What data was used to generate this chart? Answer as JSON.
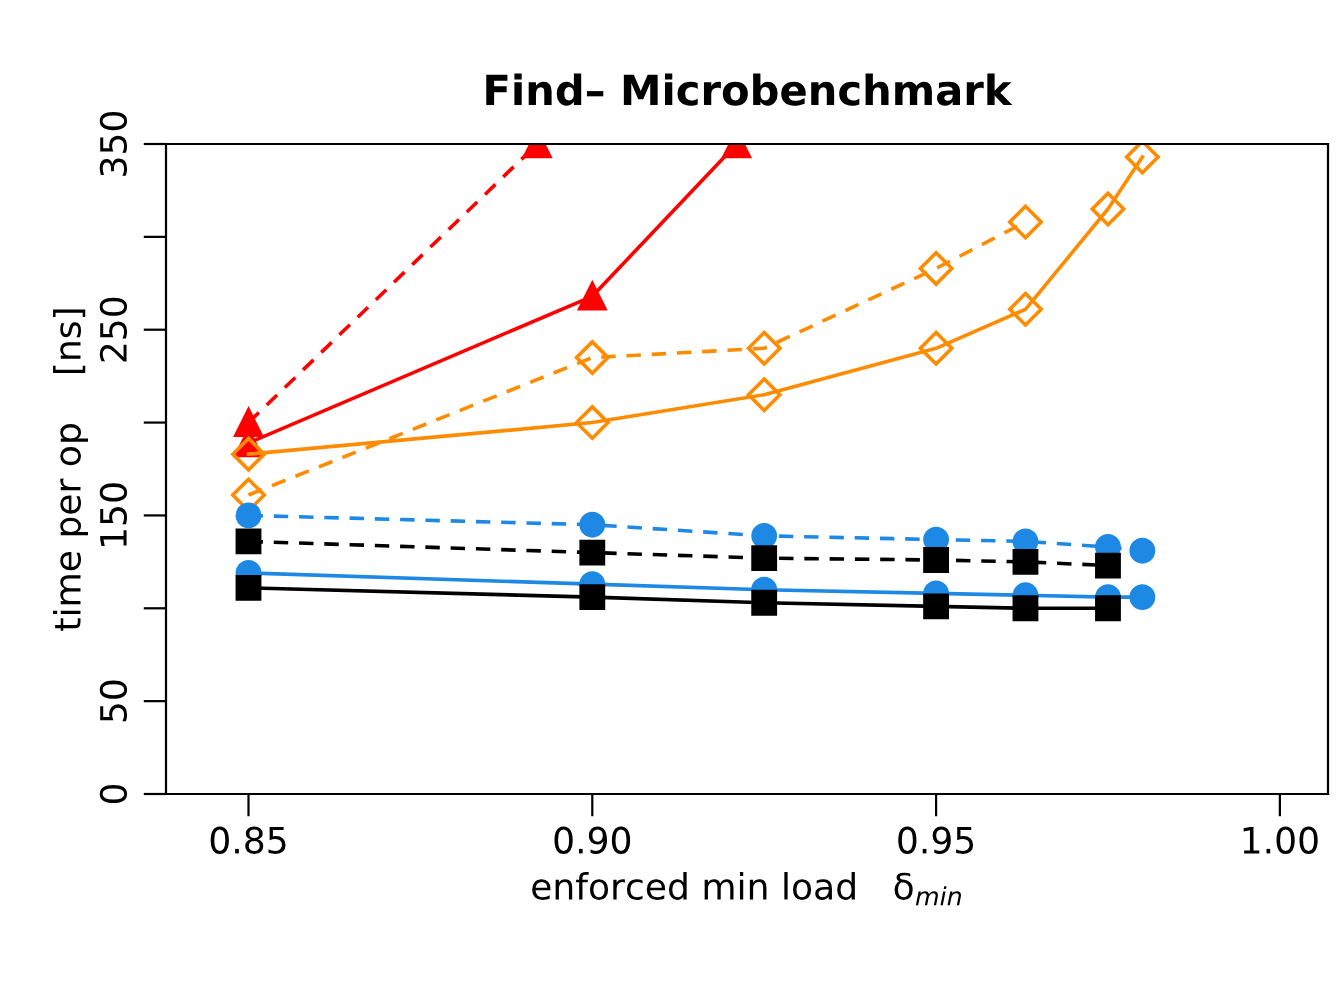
{
  "chart_data": {
    "type": "line",
    "title": "Find– Microbenchmark",
    "xlabel": "enforced min load   δ$_{min}$",
    "ylabel": "time per op    [ns]",
    "xlim": [
      0.838,
      1.007
    ],
    "xticks": [
      {
        "value": 0.85,
        "label": "0.85"
      },
      {
        "value": 0.9,
        "label": "0.90"
      },
      {
        "value": 0.95,
        "label": "0.95"
      },
      {
        "value": 1.0,
        "label": "1.00"
      }
    ],
    "ylim": [
      0,
      350
    ],
    "yticks": [
      0,
      50,
      {
        "value": 100,
        "label": null
      },
      150,
      {
        "value": 200,
        "label": null
      },
      250,
      {
        "value": 300,
        "label": null
      },
      350
    ],
    "grid": false,
    "legend": false,
    "series": [
      {
        "color": "#ff0000",
        "marker": "triangle",
        "line_style": "dashed",
        "x": [
          0.85,
          0.892
        ],
        "values": [
          200,
          350
        ]
      },
      {
        "color": "#ff0000",
        "marker": "triangle",
        "line_style": "solid",
        "x": [
          0.85,
          0.9,
          0.921
        ],
        "values": [
          189,
          268,
          350
        ]
      },
      {
        "color": "#ff8c00",
        "marker": "diamond",
        "line_style": "dashed",
        "x": [
          0.85,
          0.9,
          0.925,
          0.95,
          0.963
        ],
        "values": [
          161,
          235,
          240,
          283,
          308
        ]
      },
      {
        "color": "#ff8c00",
        "marker": "diamond",
        "line_style": "solid",
        "x": [
          0.85,
          0.9,
          0.925,
          0.95,
          0.963,
          0.975,
          0.98
        ],
        "values": [
          183,
          200,
          215,
          240,
          261,
          315,
          343
        ]
      },
      {
        "color": "#1e88e5",
        "marker": "circle",
        "line_style": "dashed",
        "x": [
          0.85,
          0.9,
          0.925,
          0.95,
          0.963,
          0.975,
          0.98
        ],
        "values": [
          150,
          145,
          139,
          137,
          136,
          133,
          131
        ]
      },
      {
        "color": "#000000",
        "marker": "square",
        "line_style": "dashed",
        "x": [
          0.85,
          0.9,
          0.925,
          0.95,
          0.963,
          0.975
        ],
        "values": [
          136,
          130,
          127,
          126,
          125,
          123
        ]
      },
      {
        "color": "#1e88e5",
        "marker": "circle",
        "line_style": "solid",
        "x": [
          0.85,
          0.9,
          0.925,
          0.95,
          0.963,
          0.975,
          0.98
        ],
        "values": [
          119,
          113,
          110,
          108,
          107,
          106,
          106
        ]
      },
      {
        "color": "#000000",
        "marker": "square",
        "line_style": "solid",
        "x": [
          0.85,
          0.9,
          0.925,
          0.95,
          0.963,
          0.975
        ],
        "values": [
          111,
          106,
          103,
          101,
          100,
          100
        ]
      }
    ]
  }
}
